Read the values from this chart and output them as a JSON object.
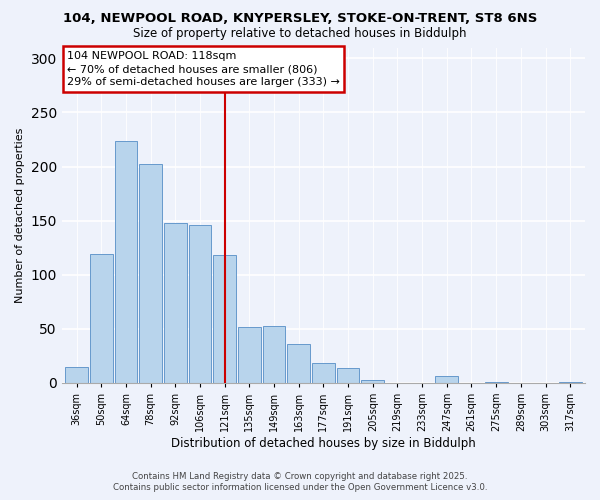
{
  "title_line1": "104, NEWPOOL ROAD, KNYPERSLEY, STOKE-ON-TRENT, ST8 6NS",
  "title_line2": "Size of property relative to detached houses in Biddulph",
  "xlabel": "Distribution of detached houses by size in Biddulph",
  "ylabel": "Number of detached properties",
  "categories": [
    "36sqm",
    "50sqm",
    "64sqm",
    "78sqm",
    "92sqm",
    "106sqm",
    "121sqm",
    "135sqm",
    "149sqm",
    "163sqm",
    "177sqm",
    "191sqm",
    "205sqm",
    "219sqm",
    "233sqm",
    "247sqm",
    "261sqm",
    "275sqm",
    "289sqm",
    "303sqm",
    "317sqm"
  ],
  "values": [
    15,
    119,
    224,
    202,
    148,
    146,
    118,
    52,
    53,
    36,
    18,
    14,
    3,
    0,
    0,
    6,
    0,
    1,
    0,
    0,
    1
  ],
  "bar_color": "#b8d4ec",
  "bar_edge_color": "#6699cc",
  "vline_x_index": 6,
  "vline_color": "#cc0000",
  "annotation_title": "104 NEWPOOL ROAD: 118sqm",
  "annotation_line2": "← 70% of detached houses are smaller (806)",
  "annotation_line3": "29% of semi-detached houses are larger (333) →",
  "annotation_box_facecolor": "#ffffff",
  "annotation_box_edgecolor": "#cc0000",
  "ylim": [
    0,
    310
  ],
  "yticks": [
    0,
    50,
    100,
    150,
    200,
    250,
    300
  ],
  "footer_line1": "Contains HM Land Registry data © Crown copyright and database right 2025.",
  "footer_line2": "Contains public sector information licensed under the Open Government Licence v3.0.",
  "bg_color": "#eef2fb",
  "grid_color": "#ffffff",
  "title1_fontsize": 9.5,
  "title2_fontsize": 8.5,
  "ylabel_fontsize": 8,
  "xlabel_fontsize": 8.5,
  "tick_fontsize": 7,
  "ann_fontsize": 8,
  "footer_fontsize": 6.2
}
